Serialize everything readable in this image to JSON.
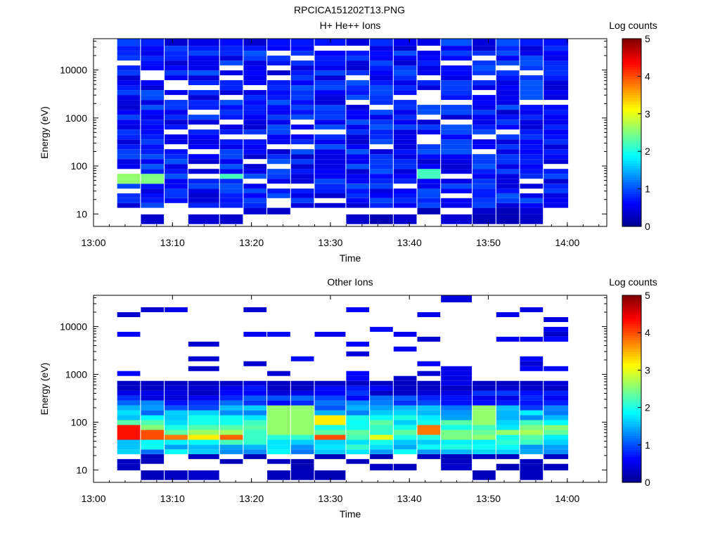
{
  "figure_title": "RPCICA151202T13.PNG",
  "colors": {
    "colormap": [
      "#00008f",
      "#0000ff",
      "#0080ff",
      "#00ffff",
      "#80ff80",
      "#ffff00",
      "#ff8000",
      "#ff0000",
      "#800000"
    ]
  },
  "chart_data": [
    {
      "type": "heatmap",
      "title": "H+ He++ Ions",
      "xlabel": "Time",
      "ylabel": "Energy (eV)",
      "y_scale": "log",
      "xlim": [
        "13:00",
        "14:05"
      ],
      "ylim": [
        5.5,
        45000
      ],
      "x_ticks": [
        "13:00",
        "13:10",
        "13:20",
        "13:30",
        "13:40",
        "13:50",
        "14:00"
      ],
      "y_ticks": [
        {
          "value": 10,
          "label": "10"
        },
        {
          "value": 100,
          "label": "100"
        },
        {
          "value": 1000,
          "label": "1000"
        },
        {
          "value": 10000,
          "label": "10000"
        }
      ],
      "time_bins": [
        "13:03",
        "13:06",
        "13:09",
        "13:12",
        "13:16",
        "13:19",
        "13:22",
        "13:25",
        "13:28",
        "13:32",
        "13:35",
        "13:38",
        "13:41",
        "13:44",
        "13:48",
        "13:51",
        "13:54",
        "13:57"
      ],
      "energy_bins_eV": [
        8,
        12,
        15,
        19,
        24,
        30,
        38,
        48,
        61,
        77,
        98,
        124,
        157,
        199,
        252,
        319,
        404,
        512,
        648,
        821,
        1040,
        1317,
        1668,
        2113,
        2676,
        3390,
        4294,
        5440,
        6891,
        8729,
        11058,
        14008,
        17745,
        22480,
        28477,
        36075
      ],
      "features": [
        {
          "time": "13:03",
          "energy_range_eV": [
            40,
            70
          ],
          "log_counts": 2.6
        },
        {
          "time": "13:06",
          "energy_range_eV": [
            40,
            70
          ],
          "log_counts": 2.5
        },
        {
          "time": "13:16",
          "energy_range_eV": [
            50,
            70
          ],
          "log_counts": 2.2
        },
        {
          "time": "13:41",
          "energy_range_eV": [
            55,
            80
          ],
          "log_counts": 2.2
        },
        {
          "time": "13:03-13:57",
          "energy_range_eV": [
            15,
            45000
          ],
          "log_counts": 0.6
        }
      ],
      "colorbar": {
        "label": "Log counts",
        "min": 0,
        "max": 5,
        "ticks": [
          "0",
          "1",
          "2",
          "3",
          "4",
          "5"
        ]
      }
    },
    {
      "type": "heatmap",
      "title": "Other Ions",
      "xlabel": "Time",
      "ylabel": "Energy (eV)",
      "y_scale": "log",
      "xlim": [
        "13:00",
        "14:05"
      ],
      "ylim": [
        5.5,
        45000
      ],
      "x_ticks": [
        "13:00",
        "13:10",
        "13:20",
        "13:30",
        "13:40",
        "13:50",
        "14:00"
      ],
      "y_ticks": [
        {
          "value": 10,
          "label": "10"
        },
        {
          "value": 100,
          "label": "100"
        },
        {
          "value": 1000,
          "label": "1000"
        },
        {
          "value": 10000,
          "label": "10000"
        }
      ],
      "time_bins": [
        "13:03",
        "13:06",
        "13:09",
        "13:12",
        "13:16",
        "13:19",
        "13:22",
        "13:25",
        "13:28",
        "13:32",
        "13:35",
        "13:38",
        "13:41",
        "13:44",
        "13:48",
        "13:51",
        "13:54",
        "13:57"
      ],
      "energy_bins_eV": [
        8,
        12,
        15,
        19,
        24,
        30,
        38,
        48,
        61,
        77,
        98,
        124,
        157,
        199,
        252,
        319,
        404,
        512,
        648,
        821,
        1040,
        1317,
        1668,
        2113,
        2676,
        3390,
        4294,
        5440,
        6891,
        8729,
        11058,
        14008,
        17745,
        22480,
        28477,
        36075
      ],
      "features": [
        {
          "time": "13:03",
          "energy_range_eV": [
            40,
            80
          ],
          "log_counts": 4.3
        },
        {
          "time": "13:06",
          "energy_range_eV": [
            40,
            70
          ],
          "log_counts": 4.0
        },
        {
          "time": "13:09",
          "energy_range_eV": [
            40,
            60
          ],
          "log_counts": 3.8
        },
        {
          "time": "13:12",
          "energy_range_eV": [
            40,
            60
          ],
          "log_counts": 3.2
        },
        {
          "time": "13:16",
          "energy_range_eV": [
            40,
            60
          ],
          "log_counts": 3.9
        },
        {
          "time": "13:22",
          "energy_range_eV": [
            60,
            200
          ],
          "log_counts": 2.6
        },
        {
          "time": "13:25",
          "energy_range_eV": [
            60,
            200
          ],
          "log_counts": 2.6
        },
        {
          "time": "13:28",
          "energy_range_eV": [
            40,
            60
          ],
          "log_counts": 4.0
        },
        {
          "time": "13:28",
          "energy_range_eV": [
            80,
            130
          ],
          "log_counts": 3.2
        },
        {
          "time": "13:35",
          "energy_range_eV": [
            40,
            60
          ],
          "log_counts": 3.0
        },
        {
          "time": "13:41",
          "energy_range_eV": [
            60,
            90
          ],
          "log_counts": 3.8
        },
        {
          "time": "13:48",
          "energy_range_eV": [
            80,
            200
          ],
          "log_counts": 2.6
        }
      ],
      "colorbar": {
        "label": "Log counts",
        "min": 0,
        "max": 5,
        "ticks": [
          "0",
          "1",
          "2",
          "3",
          "4",
          "5"
        ]
      }
    }
  ]
}
